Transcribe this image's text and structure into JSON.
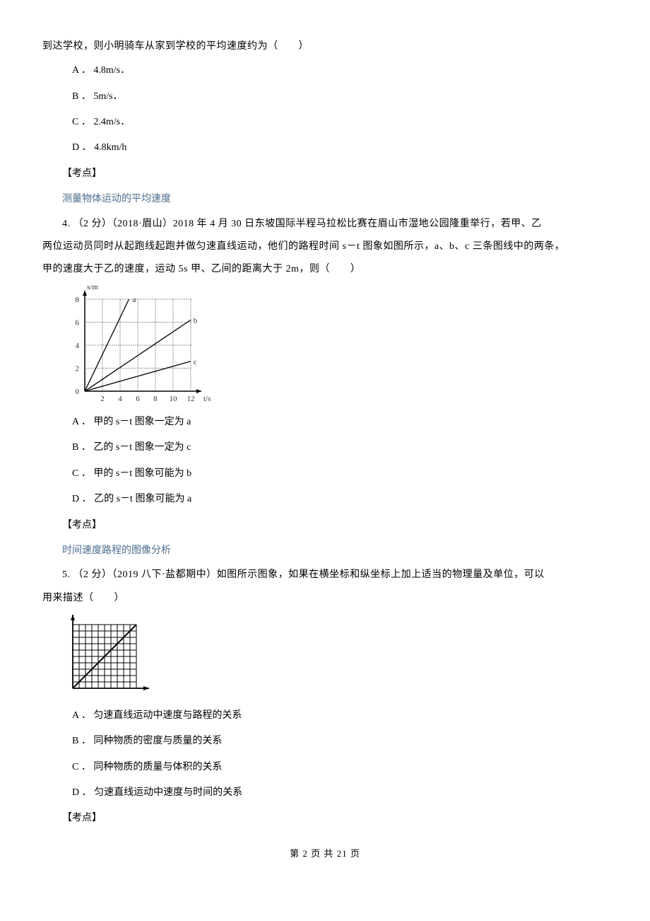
{
  "q3_tail": {
    "stem": "到达学校，则小明骑车从家到学校的平均速度约为（　　）",
    "options": {
      "A": "A ． 4.8m/s．",
      "B": "B ． 5m/s．",
      "C": "C ． 2.4m/s．",
      "D": "D ． 4.8km/h"
    },
    "kaodian_label": "【考点】",
    "topic": "测量物体运动的平均速度"
  },
  "q4": {
    "stem_line1": "4.  （2 分）（2018·眉山）2018 年 4 月 30 日东坡国际半程马拉松比赛在眉山市湿地公园隆重举行，若甲、乙",
    "stem_line2": "两位运动员同时从起跑线起跑并做匀速直线运动，他们的路程时间 s－t 图象如图所示，a、b、c 三条图线中的两条，",
    "stem_line3": "甲的速度大于乙的速度，运动 5s 甲、乙间的距离大于 2m，则（　　）",
    "options": {
      "A": "A ． 甲的 s－t 图象一定为 a",
      "B": "B ． 乙的 s－t 图象一定为 c",
      "C": "C ． 甲的 s－t 图象可能为 b",
      "D": "D ． 乙的 s－t 图象可能为 a"
    },
    "kaodian_label": "【考点】",
    "topic": "时间速度路程的图像分析",
    "chart": {
      "type": "line",
      "x_axis": {
        "label": "t/s",
        "min": 0,
        "max": 12,
        "ticks": [
          2,
          4,
          6,
          8,
          10,
          12
        ]
      },
      "y_axis": {
        "label": "s/m",
        "min": 0,
        "max": 8,
        "ticks": [
          2,
          4,
          6,
          8
        ]
      },
      "grid_color": "#888888",
      "axis_color": "#000000",
      "dot_color": "#444444",
      "background": "#ffffff",
      "series": [
        {
          "name": "a",
          "points": [
            [
              0,
              0
            ],
            [
              5,
              8
            ]
          ],
          "label_pos": [
            5.4,
            8
          ]
        },
        {
          "name": "b",
          "points": [
            [
              0,
              0
            ],
            [
              12,
              6.2
            ]
          ],
          "label_pos": [
            12.3,
            6.2
          ]
        },
        {
          "name": "c",
          "points": [
            [
              0,
              0
            ],
            [
              12,
              2.6
            ]
          ],
          "label_pos": [
            12.3,
            2.6
          ]
        }
      ],
      "line_color": "#000000",
      "font_size": 11
    }
  },
  "q5": {
    "stem_line1": "5.  （2 分）（2019 八下·盐都期中）如图所示图象，如果在横坐标和纵坐标上加上适当的物理量及单位，可以",
    "stem_line2": "用来描述（　　）",
    "options": {
      "A": "A ． 匀速直线运动中速度与路程的关系",
      "B": "B ． 同种物质的密度与质量的关系",
      "C": "C ． 同种物质的质量与体积的关系",
      "D": "D ． 匀速直线运动中速度与时间的关系"
    },
    "kaodian_label": "【考点】",
    "chart": {
      "type": "line",
      "grid_n": 10,
      "grid_color": "#000000",
      "axis_color": "#000000",
      "line": [
        [
          0,
          0
        ],
        [
          10,
          10
        ]
      ],
      "line_color": "#000000",
      "background": "#ffffff"
    }
  },
  "footer": {
    "text": "第 2 页 共 21 页"
  }
}
